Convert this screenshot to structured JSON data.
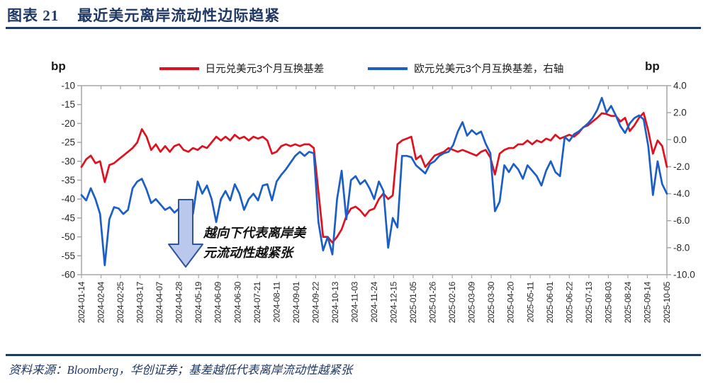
{
  "page": {
    "title_prefix": "图表 21",
    "title_text": "最近美元离岸流动性边际趋紧",
    "source_note": "资料来源：Bloomberg，华创证券；基差越低代表离岸流动性越紧张"
  },
  "colors": {
    "accent_navy": "#1F3864",
    "jpy_red": "#E0101E",
    "eur_blue": "#1B5EC5",
    "axis_gray": "#A6A6A6",
    "arrow_fill": "#B9C8EC",
    "arrow_border": "#2F5597"
  },
  "legend": [
    {
      "label": "日元兑美元3个月互换基差",
      "color": "#E0101E"
    },
    {
      "label": "欧元兑美元3个月互换基差，右轴",
      "color": "#1B5EC5"
    }
  ],
  "axes": {
    "left_unit": "bp",
    "right_unit": "bp"
  },
  "annotation": {
    "lines": [
      "越向下代表离岸美",
      "元流动性越紧张"
    ]
  },
  "chart_data": {
    "type": "line",
    "title": "最近美元离岸流动性边际趋紧",
    "x_start": "2024-01-14",
    "x_end": "2025-10-05",
    "sample_interval_days": 5,
    "grid": false,
    "legend_position": "top",
    "left_axis": {
      "unit": "bp",
      "range": [
        -60,
        -10
      ],
      "ticks": [
        "-10",
        "-15",
        "-20",
        "-25",
        "-30",
        "-35",
        "-40",
        "-45",
        "-50",
        "-55",
        "-60"
      ]
    },
    "right_axis": {
      "unit": "bp",
      "range": [
        -10,
        4
      ],
      "ticks": [
        "4.0",
        "2.0",
        "0.0",
        "-2.0",
        "-4.0",
        "-6.0",
        "-8.0",
        "-10.0"
      ]
    },
    "x_tick_labels": [
      "2024-01-14",
      "2024-02-04",
      "2024-02-25",
      "2024-03-17",
      "2024-04-07",
      "2024-04-28",
      "2024-05-19",
      "2024-06-09",
      "2024-06-30",
      "2024-07-21",
      "2024-08-11",
      "2024-09-01",
      "2024-09-22",
      "2024-10-13",
      "2024-11-03",
      "2024-11-24",
      "2024-12-15",
      "2025-01-05",
      "2025-01-26",
      "2025-02-16",
      "2025-03-09",
      "2025-03-30",
      "2025-04-20",
      "2025-05-11",
      "2025-06-01",
      "2025-06-22",
      "2025-07-13",
      "2025-08-03",
      "2025-08-24",
      "2025-09-14",
      "2025-10-05"
    ],
    "series": [
      {
        "name": "日元兑美元3个月互换基差",
        "axis": "left",
        "color": "#E0101E",
        "values": [
          -31.5,
          -29.5,
          -28.5,
          -30.5,
          -30,
          -35.5,
          -31,
          -30.5,
          -29.5,
          -28.5,
          -27.5,
          -26.5,
          -25,
          -21.5,
          -23.5,
          -27,
          -25.5,
          -27.5,
          -26,
          -27.5,
          -26,
          -25.5,
          -27,
          -27.5,
          -26.5,
          -27,
          -26,
          -26.5,
          -25,
          -23.5,
          -24.5,
          -23.5,
          -24.5,
          -23,
          -24,
          -23.5,
          -24.5,
          -23.5,
          -24,
          -23.5,
          -24.5,
          -28,
          -27.5,
          -26,
          -25.5,
          -26,
          -25.5,
          -26,
          -25.5,
          -25.5,
          -26.5,
          -38,
          -50,
          -50,
          -51.5,
          -50,
          -48,
          -44.5,
          -42.5,
          -42,
          -43,
          -44.5,
          -43,
          -42.5,
          -40,
          -38.5,
          -40,
          -39,
          -25.5,
          -24.5,
          -24,
          -23.5,
          -29.5,
          -28.5,
          -31.5,
          -30,
          -28.5,
          -28,
          -27.5,
          -26.5,
          -27,
          -27.5,
          -27,
          -27.5,
          -28,
          -28.5,
          -27.5,
          -27,
          -29,
          -33.5,
          -28,
          -27,
          -26.5,
          -26.5,
          -25.5,
          -25.5,
          -24.5,
          -25.5,
          -24.5,
          -25,
          -24,
          -24.5,
          -23,
          -24,
          -23.5,
          -23,
          -23.5,
          -22.5,
          -21,
          -20.5,
          -19.5,
          -18.5,
          -17.3,
          -17.5,
          -18,
          -18,
          -19.5,
          -18.5,
          -22,
          -20.5,
          -18.5,
          -17.2,
          -22,
          -28,
          -24.5,
          -26,
          -31.5
        ]
      },
      {
        "name": "欧元兑美元3个月互换基差，右轴",
        "axis": "right",
        "color": "#1B5EC5",
        "values": [
          -4.1,
          -4.5,
          -3.6,
          -4.4,
          -5.5,
          -9.3,
          -5.9,
          -5.0,
          -5.1,
          -5.5,
          -5.2,
          -3.6,
          -3.1,
          -2.9,
          -3.7,
          -4.7,
          -4.4,
          -4.8,
          -5.2,
          -5.0,
          -5.4,
          -5.1,
          -5.7,
          -5.9,
          -5.5,
          -3.1,
          -4.0,
          -3.4,
          -4.4,
          -6.1,
          -4.4,
          -3.8,
          -4.5,
          -3.3,
          -4.0,
          -5.2,
          -4.4,
          -4.0,
          -4.5,
          -3.4,
          -3.3,
          -4.5,
          -3.1,
          -2.6,
          -2.2,
          -1.7,
          -1.2,
          -0.9,
          -1.2,
          -0.9,
          -1.0,
          -6.1,
          -8.2,
          -7.2,
          -8.5,
          -4.4,
          -2.3,
          -5.9,
          -3.0,
          -2.7,
          -3.3,
          -3.0,
          -3.6,
          -4.4,
          -3.1,
          -3.8,
          -8.0,
          -5.8,
          -6.5,
          -1.2,
          -1.2,
          -1.3,
          -1.9,
          -2.2,
          -2.5,
          -1.8,
          -1.6,
          -1.2,
          -1.0,
          -0.9,
          -0.4,
          0.6,
          1.3,
          0.3,
          0.7,
          0.4,
          0.6,
          -0.3,
          -1.0,
          -5.3,
          -4.6,
          -1.9,
          -2.4,
          -1.8,
          -2.2,
          -2.9,
          -1.9,
          -2.3,
          -2.7,
          -3.4,
          -2.3,
          -1.6,
          -2.4,
          -2.7,
          0.2,
          -0.1,
          0.4,
          0.6,
          0.9,
          1.2,
          1.6,
          2.2,
          3.1,
          2.0,
          2.5,
          1.8,
          1.0,
          0.5,
          1.2,
          1.6,
          1.8,
          1.5,
          -0.5,
          -4.1,
          -1.6,
          -3.3,
          -4.0
        ]
      }
    ]
  }
}
